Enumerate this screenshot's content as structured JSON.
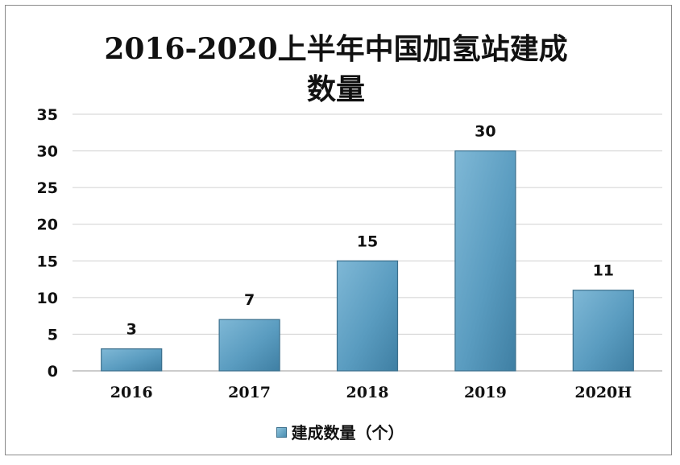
{
  "chart_data": {
    "type": "bar",
    "title": "2016-2020上半年中国加氢站建成数量",
    "title_lines": [
      "2016-2020上半年中国加氢站建成",
      "数量"
    ],
    "categories": [
      "2016",
      "2017",
      "2018",
      "2019",
      "2020H"
    ],
    "series": [
      {
        "name": "建成数量（个）",
        "values": [
          3,
          7,
          15,
          30,
          11
        ]
      }
    ],
    "xlabel": "",
    "ylabel": "",
    "ylim": [
      0,
      35
    ],
    "yticks": [
      0,
      5,
      10,
      15,
      20,
      25,
      30,
      35
    ],
    "grid": true,
    "legend_position": "bottom",
    "data_labels": true,
    "bar_color": "#5b9ec4",
    "bar_edge_color": "#3b6f8c",
    "grid_color": "#d0d0d0"
  }
}
